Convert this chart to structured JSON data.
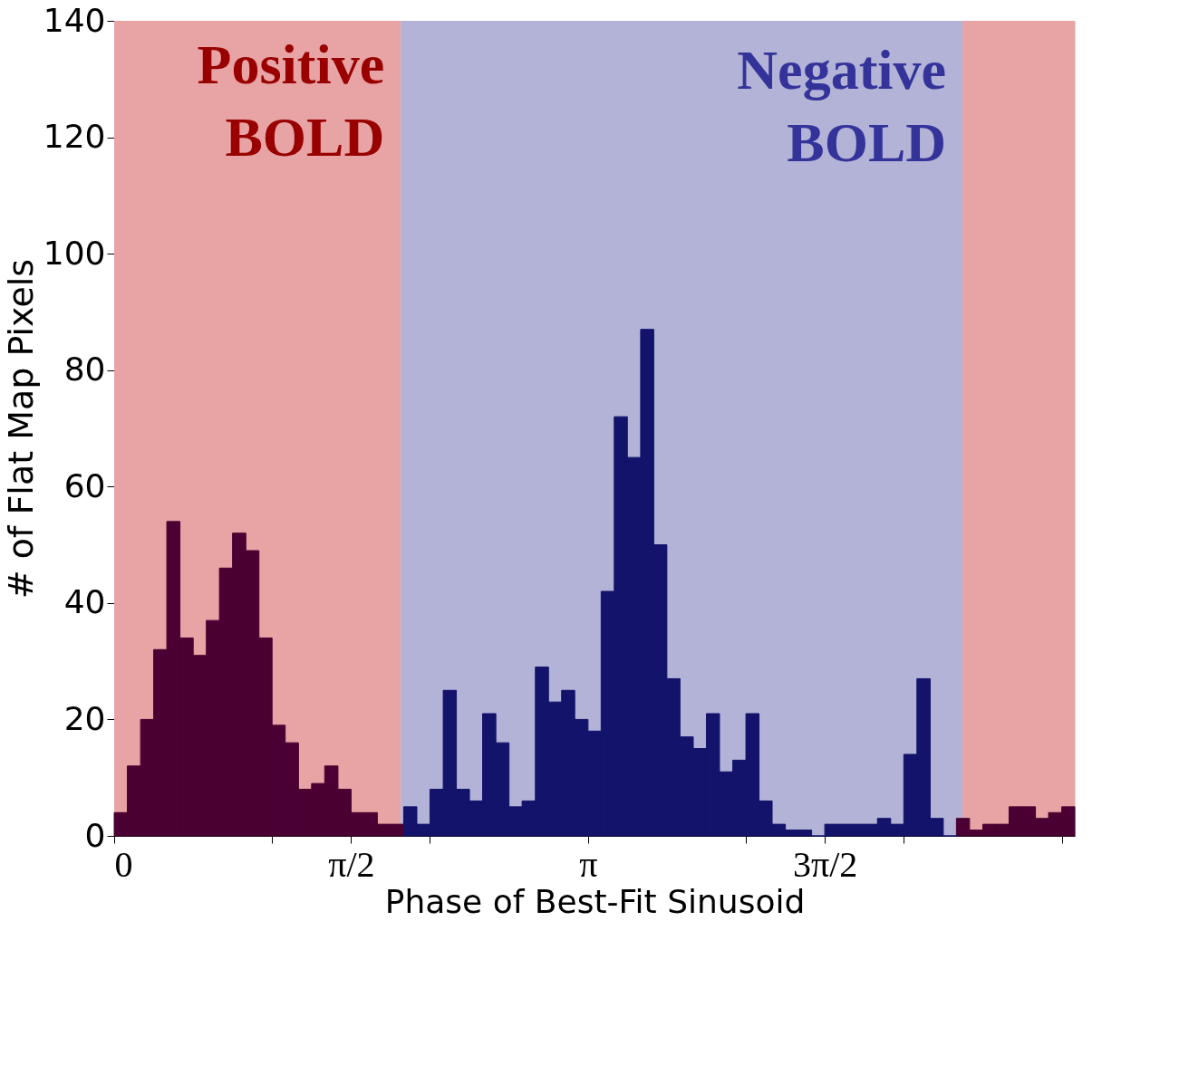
{
  "chart_data": {
    "type": "histogram",
    "xlabel": "Phase of Best-Fit Sinusoid",
    "ylabel": "# of Flat Map Pixels",
    "bins": [
      0,
      0.087,
      0.175,
      0.262,
      0.349,
      0.436,
      0.524,
      0.611,
      0.698,
      0.785,
      0.873,
      0.96,
      1.047,
      1.134,
      1.222,
      1.309,
      1.396,
      1.484,
      1.571,
      1.658,
      1.745,
      1.833,
      1.92,
      2.007,
      2.094,
      2.182,
      2.269,
      2.356,
      2.443,
      2.531,
      2.618,
      2.705,
      2.793,
      2.88,
      2.967,
      3.054,
      3.142,
      3.229,
      3.316,
      3.403,
      3.491,
      3.578,
      3.665,
      3.752,
      3.84,
      3.927,
      4.014,
      4.102,
      4.189,
      4.276,
      4.363,
      4.451,
      4.538,
      4.625,
      4.712,
      4.8,
      4.887,
      4.974,
      5.061,
      5.149,
      5.236,
      5.323,
      5.411,
      5.498,
      5.585,
      5.672,
      5.76,
      5.847,
      5.934,
      6.021,
      6.109,
      6.196,
      6.283,
      6.37
    ],
    "series": [
      {
        "color": "#4a0032",
        "values": [
          4,
          12,
          20,
          32,
          54,
          34,
          31,
          37,
          46,
          52,
          49,
          34,
          19,
          16,
          8,
          9,
          12,
          8,
          4,
          4,
          2,
          2,
          null,
          null,
          null,
          null,
          null,
          null,
          null,
          null,
          null,
          null,
          null,
          null,
          null,
          null,
          null,
          null,
          null,
          null,
          null,
          null,
          null,
          null,
          null,
          null,
          null,
          null,
          null,
          null,
          null,
          null,
          null,
          null,
          null,
          null,
          null,
          null,
          null,
          null,
          null,
          null,
          null,
          null,
          3,
          1,
          2,
          2,
          5,
          5,
          3,
          4,
          5
        ]
      },
      {
        "color": "#13136b",
        "values": [
          null,
          null,
          null,
          null,
          null,
          null,
          null,
          null,
          null,
          null,
          null,
          null,
          null,
          null,
          null,
          null,
          null,
          null,
          null,
          null,
          null,
          null,
          5,
          2,
          8,
          25,
          8,
          6,
          21,
          16,
          5,
          6,
          29,
          23,
          25,
          20,
          18,
          42,
          72,
          65,
          87,
          50,
          27,
          17,
          15,
          21,
          11,
          13,
          21,
          6,
          2,
          1,
          1,
          0,
          2,
          2,
          2,
          2,
          3,
          2,
          14,
          27,
          3,
          0,
          null,
          null,
          null,
          null,
          null,
          null,
          null,
          null,
          null
        ]
      }
    ],
    "xlim": [
      0,
      6.37
    ],
    "xticks": [
      {
        "value": 0,
        "label": "0"
      },
      {
        "value": 1.047,
        "label": null
      },
      {
        "value": 1.571,
        "label": "π/2"
      },
      {
        "value": 2.094,
        "label": null
      },
      {
        "value": 3.142,
        "label": "π"
      },
      {
        "value": 4.189,
        "label": null
      },
      {
        "value": 4.712,
        "label": "3π/2"
      },
      {
        "value": 5.236,
        "label": null
      },
      {
        "value": 6.283,
        "label": null
      }
    ],
    "ylim": [
      0,
      140
    ],
    "yticks": [
      0,
      20,
      40,
      60,
      80,
      100,
      120,
      140
    ],
    "bands": [
      {
        "axis": "x",
        "from": 0,
        "to": 1.9,
        "label": "Positive BOLD",
        "color": "#e8a3a5"
      },
      {
        "axis": "x",
        "from": 1.9,
        "to": 5.625,
        "label": "Negative BOLD",
        "color": "#b3b3d8"
      },
      {
        "axis": "x",
        "from": 5.625,
        "to": 6.37,
        "color": "#e8a3a5"
      }
    ],
    "grid": false,
    "legend": false
  }
}
